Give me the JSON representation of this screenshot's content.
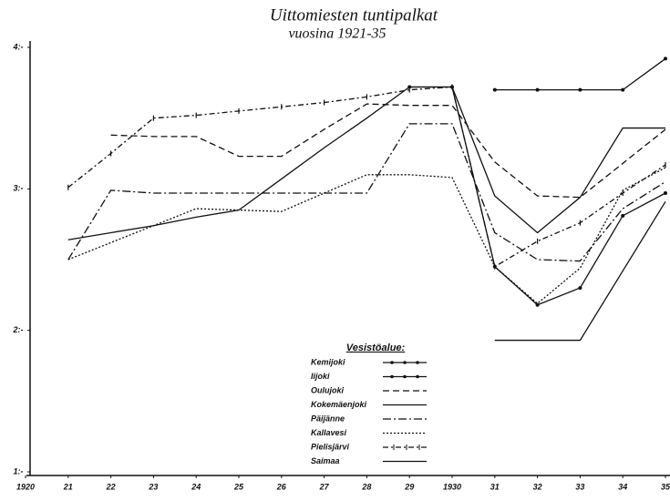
{
  "chart_data": {
    "type": "line",
    "title": "Uittomiesten tuntipalkat",
    "subtitle": "vuosina 1921-35",
    "legend_title": "Vesistöalue:",
    "legend": "bottom-center",
    "x": [
      1921,
      1922,
      1923,
      1924,
      1925,
      1926,
      1927,
      1928,
      1929,
      1930,
      1931,
      1932,
      1933,
      1934,
      1935
    ],
    "xlim": [
      1920,
      1935
    ],
    "xticks": [
      {
        "value": 1920,
        "label": "1920"
      },
      {
        "value": 1921,
        "label": "21"
      },
      {
        "value": 1922,
        "label": "22"
      },
      {
        "value": 1923,
        "label": "23"
      },
      {
        "value": 1924,
        "label": "24"
      },
      {
        "value": 1925,
        "label": "25"
      },
      {
        "value": 1926,
        "label": "26"
      },
      {
        "value": 1927,
        "label": "27"
      },
      {
        "value": 1928,
        "label": "28"
      },
      {
        "value": 1929,
        "label": "29"
      },
      {
        "value": 1930,
        "label": "1930"
      },
      {
        "value": 1931,
        "label": "31"
      },
      {
        "value": 1932,
        "label": "32"
      },
      {
        "value": 1933,
        "label": "33"
      },
      {
        "value": 1934,
        "label": "34"
      },
      {
        "value": 1935,
        "label": "35"
      }
    ],
    "ylim": [
      1,
      4
    ],
    "yticks": [
      {
        "value": 1,
        "label": "1:-"
      },
      {
        "value": 2,
        "label": "2:-"
      },
      {
        "value": 3,
        "label": "3:-"
      },
      {
        "value": 4,
        "label": "4:-"
      }
    ],
    "series": [
      {
        "name": "Kemijoki",
        "color": "#111",
        "dash": "none",
        "marker": "dot",
        "values": [
          null,
          null,
          null,
          null,
          null,
          null,
          null,
          null,
          null,
          null,
          3.7,
          3.7,
          3.7,
          3.7,
          3.92
        ]
      },
      {
        "name": "Iijoki",
        "color": "#111",
        "dash": "none",
        "marker": "dot",
        "values": [
          null,
          null,
          null,
          null,
          null,
          null,
          null,
          null,
          3.72,
          3.72,
          2.45,
          2.18,
          2.3,
          2.81,
          2.97
        ]
      },
      {
        "name": "Oulujoki",
        "color": "#111",
        "dash": "7 4",
        "marker": "none",
        "values": [
          null,
          3.38,
          3.37,
          3.37,
          3.23,
          3.23,
          3.42,
          3.6,
          3.59,
          3.59,
          3.19,
          2.95,
          2.94,
          3.18,
          3.42
        ]
      },
      {
        "name": "Kokemäenjoki",
        "color": "#111",
        "dash": "none",
        "marker": "none",
        "values": [
          2.64,
          2.69,
          2.74,
          2.8,
          2.85,
          3.07,
          3.29,
          3.5,
          3.72,
          3.72,
          2.95,
          2.69,
          2.94,
          3.43,
          3.43
        ]
      },
      {
        "name": "Päijänne",
        "color": "#111",
        "dash": "9 3 2 3",
        "marker": "none",
        "values": [
          2.5,
          2.99,
          2.97,
          2.97,
          2.97,
          2.97,
          2.97,
          2.97,
          3.46,
          3.46,
          2.69,
          2.5,
          2.49,
          2.86,
          3.05
        ]
      },
      {
        "name": "Kallavesi",
        "color": "#111",
        "dash": "2 2",
        "marker": "none",
        "values": [
          2.5,
          2.62,
          2.74,
          2.86,
          2.85,
          2.84,
          2.97,
          3.1,
          3.1,
          3.08,
          2.45,
          2.19,
          2.44,
          2.99,
          3.15
        ]
      },
      {
        "name": "Pielisjärvi",
        "color": "#111",
        "dash": "6 3 2 3",
        "marker": "cross",
        "values": [
          3.01,
          3.25,
          3.5,
          3.52,
          3.55,
          3.58,
          3.61,
          3.65,
          3.7,
          3.72,
          2.45,
          2.63,
          2.76,
          2.97,
          3.17
        ]
      },
      {
        "name": "Saimaa",
        "color": "#111",
        "dash": "none",
        "marker": "none",
        "values": [
          null,
          null,
          null,
          null,
          null,
          null,
          null,
          null,
          null,
          null,
          1.93,
          1.93,
          1.93,
          2.42,
          2.91
        ]
      }
    ]
  }
}
